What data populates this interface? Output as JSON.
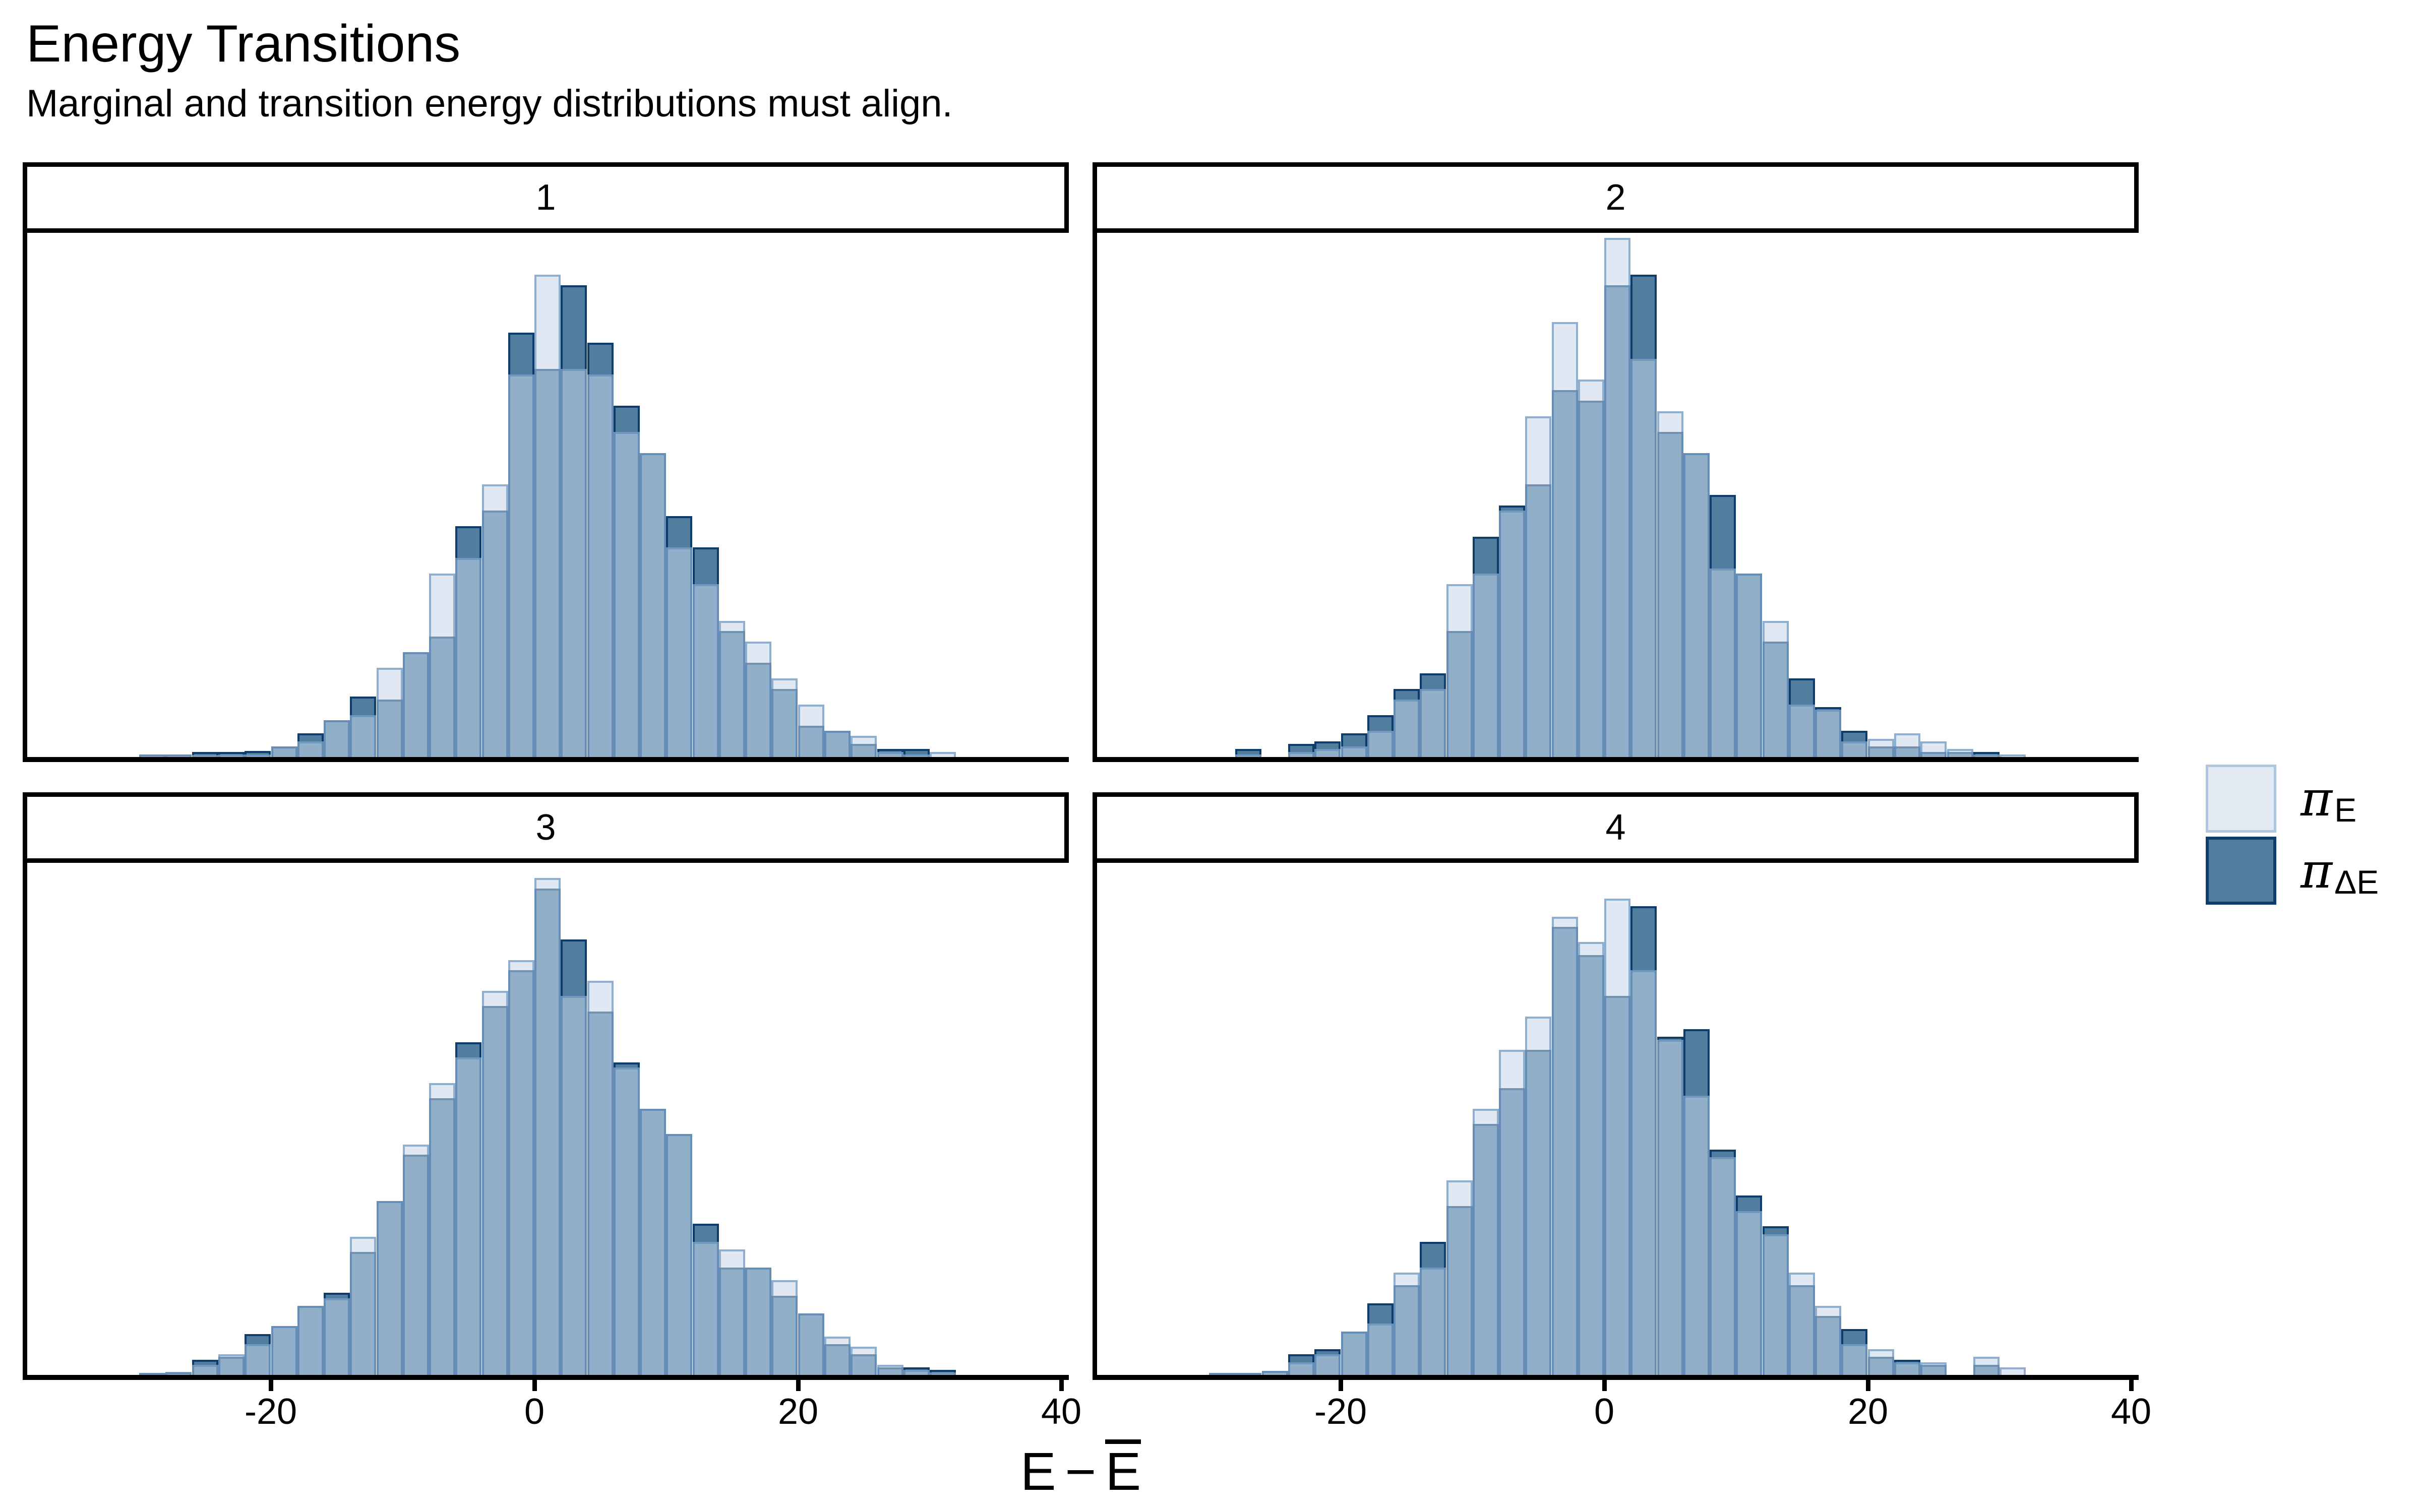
{
  "header": {
    "title": "Energy Transitions",
    "subtitle": "Marginal and transition energy distributions must align."
  },
  "axis": {
    "x_label_part1": "E",
    "x_label_minus": "−",
    "x_label_part2": "E",
    "x_label_part2_overline": true
  },
  "legend": {
    "items": [
      {
        "name": "pi_E",
        "main": "π",
        "sub": "E"
      },
      {
        "name": "pi_dE",
        "main": "π",
        "sub": "ΔE"
      }
    ]
  },
  "colors": {
    "pi_E_fill_apparent": "#e1e9f3",
    "pi_E_border_apparent": "#aec6de",
    "pi_E_fill_rgba": "rgba(199,215,234,0.55)",
    "pi_E_border_rgba": "rgba(94,138,186,0.62)",
    "pi_dE_fill": "#517e9f",
    "pi_dE_border": "#0e3d6b",
    "overlap_fill_apparent": "#92afc8",
    "axis_color": "#000000",
    "background": "#ffffff"
  },
  "chart_data": {
    "type": "bar",
    "subtype": "overlaid-histograms-faceted",
    "title": "Energy Transitions",
    "subtitle": "Marginal and transition energy distributions must align.",
    "xlabel": "E − Ē",
    "legend_position": "right",
    "bin_width": 2,
    "bin_centers": [
      -29,
      -27,
      -25,
      -23,
      -21,
      -19,
      -17,
      -15,
      -13,
      -11,
      -9,
      -7,
      -5,
      -3,
      -1,
      1,
      3,
      5,
      7,
      9,
      11,
      13,
      15,
      17,
      19,
      21,
      23,
      25,
      27,
      29,
      31
    ],
    "x_ticks": [
      -20,
      0,
      20,
      40
    ],
    "x_tick_labels": [
      "-20",
      "0",
      "20",
      "40"
    ],
    "x_range": [
      -38.5,
      40.5
    ],
    "heights_unit": "percent_of_panel_height",
    "facets": [
      {
        "label": "1",
        "pi_E": [
          0.5,
          0.5,
          0.3,
          0.5,
          0.5,
          2,
          3,
          7,
          8,
          17,
          20,
          35,
          38,
          52,
          73,
          92,
          74,
          73,
          62,
          58,
          40,
          33,
          26,
          22,
          15,
          10,
          5,
          4,
          1,
          0.5,
          1
        ],
        "pi_dE": [
          0.5,
          0.5,
          1,
          1,
          1.2,
          2,
          4.5,
          7,
          11.5,
          11,
          20,
          23,
          44,
          47,
          81,
          74,
          90,
          79,
          67,
          58,
          46,
          40,
          24,
          18,
          13,
          6,
          5,
          2.5,
          1.5,
          1.5,
          0
        ]
      },
      {
        "label": "2",
        "pi_E": [
          0,
          0.5,
          0,
          1,
          1.5,
          2,
          5,
          11,
          13,
          33,
          35,
          47,
          65,
          83,
          72,
          99,
          76,
          66,
          58,
          36,
          35,
          26,
          10,
          9,
          3,
          3.5,
          4.5,
          3,
          1.5,
          0.5,
          0.5
        ],
        "pi_dE": [
          0,
          1.5,
          0,
          2.5,
          3,
          4.5,
          8,
          13,
          16,
          24,
          42,
          48,
          52,
          70,
          68,
          90,
          92,
          62,
          58,
          50,
          35,
          22,
          15,
          9.5,
          5,
          2,
          2,
          1,
          1,
          1,
          0
        ]
      },
      {
        "label": "3",
        "pi_E": [
          0.4,
          0.6,
          2,
          4,
          6,
          9.5,
          13.5,
          15,
          27,
          34,
          45,
          57,
          62,
          75,
          81,
          97,
          74,
          77,
          60,
          52,
          47,
          26,
          24.5,
          21,
          18.5,
          12,
          7.5,
          5.5,
          2,
          1,
          0.5
        ],
        "pi_dE": [
          0.4,
          0.5,
          3,
          3.5,
          8,
          9.5,
          13.5,
          16,
          24,
          34,
          43,
          54,
          65,
          72,
          79,
          95,
          85,
          71,
          61,
          52,
          47,
          29.5,
          21,
          21,
          15.5,
          12,
          6,
          4,
          1.5,
          1.5,
          1
        ]
      },
      {
        "label": "4",
        "pi_E": [
          0.3,
          0.4,
          0.8,
          2.5,
          4,
          8.5,
          10,
          20,
          21,
          38,
          52,
          63.5,
          70,
          89.5,
          84.5,
          93,
          79,
          65.5,
          54.5,
          42.5,
          32,
          27.5,
          20,
          13.5,
          6,
          5,
          2.5,
          2.5,
          0,
          3.5,
          1.5
        ],
        "pi_dE": [
          0.3,
          0.4,
          0.8,
          4,
          5,
          8.5,
          14,
          17.5,
          26,
          33,
          49,
          56,
          63.5,
          87.5,
          82,
          74,
          91.5,
          66,
          67.5,
          44,
          35,
          29,
          17.5,
          11.5,
          9,
          3.5,
          3,
          2,
          0,
          2,
          0
        ]
      }
    ]
  }
}
